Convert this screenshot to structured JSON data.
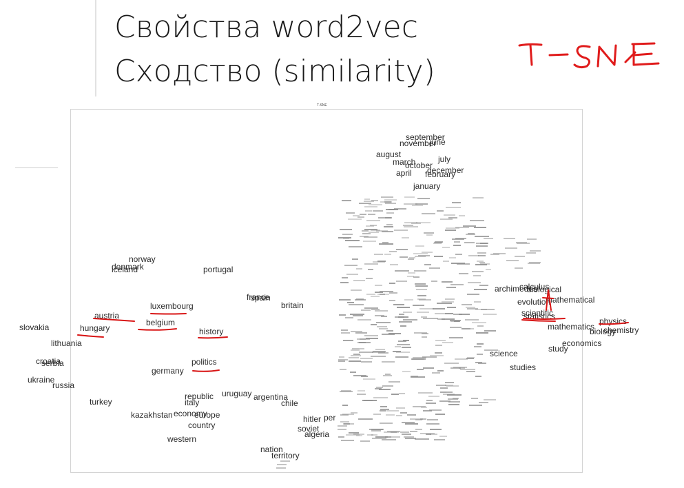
{
  "slide": {
    "title_line1": "Свойства word2vec",
    "title_line2": "Сходство (similarity)",
    "annotation": "T-SNE",
    "annotation_color": "#e01b1b"
  },
  "chart_data": {
    "type": "scatter",
    "title": "T-SNE",
    "points": [
      {
        "word": "september"
      },
      {
        "word": "november"
      },
      {
        "word": "june"
      },
      {
        "word": "august"
      },
      {
        "word": "july"
      },
      {
        "word": "march"
      },
      {
        "word": "october"
      },
      {
        "word": "december"
      },
      {
        "word": "april"
      },
      {
        "word": "february"
      },
      {
        "word": "january"
      },
      {
        "word": "norway"
      },
      {
        "word": "denmark"
      },
      {
        "word": "iceland"
      },
      {
        "word": "portugal"
      },
      {
        "word": "france"
      },
      {
        "word": "spain"
      },
      {
        "word": "britain"
      },
      {
        "word": "luxembourg"
      },
      {
        "word": "austria"
      },
      {
        "word": "belgium"
      },
      {
        "word": "hungary"
      },
      {
        "word": "history"
      },
      {
        "word": "slovakia"
      },
      {
        "word": "lithuania"
      },
      {
        "word": "croatia"
      },
      {
        "word": "serbia"
      },
      {
        "word": "politics"
      },
      {
        "word": "germany"
      },
      {
        "word": "ukraine"
      },
      {
        "word": "russia"
      },
      {
        "word": "turkey"
      },
      {
        "word": "republic"
      },
      {
        "word": "uruguay"
      },
      {
        "word": "argentina"
      },
      {
        "word": "italy"
      },
      {
        "word": "chile"
      },
      {
        "word": "kazakhstan"
      },
      {
        "word": "economy"
      },
      {
        "word": "europe"
      },
      {
        "word": "country"
      },
      {
        "word": "western"
      },
      {
        "word": "hitler"
      },
      {
        "word": "per"
      },
      {
        "word": "soviet"
      },
      {
        "word": "algeria"
      },
      {
        "word": "nation"
      },
      {
        "word": "territory"
      },
      {
        "word": "archimedes"
      },
      {
        "word": "calculus"
      },
      {
        "word": "biological"
      },
      {
        "word": "evolution"
      },
      {
        "word": "mathematical"
      },
      {
        "word": "scientific"
      },
      {
        "word": "statistics"
      },
      {
        "word": "mathematics"
      },
      {
        "word": "physics"
      },
      {
        "word": "chemistry"
      },
      {
        "word": "biology"
      },
      {
        "word": "economics"
      },
      {
        "word": "study"
      },
      {
        "word": "science"
      },
      {
        "word": "studies"
      }
    ]
  }
}
